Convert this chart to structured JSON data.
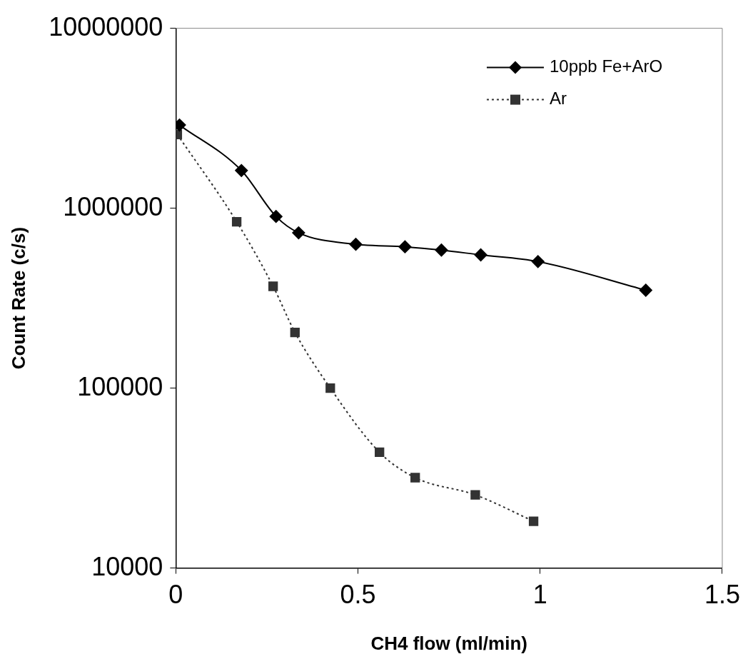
{
  "chart_data": {
    "type": "line",
    "xlabel": "CH4 flow (ml/min)",
    "ylabel": "Count Rate (c/s)",
    "log": "y",
    "xlim": [
      0,
      1.5
    ],
    "xticks": [
      0,
      0.5,
      1,
      1.5
    ],
    "ylim": [
      10000,
      10000000
    ],
    "yticks": [
      10000,
      100000,
      1000000,
      10000000
    ],
    "grid": false,
    "legend": "top right",
    "series": [
      {
        "name": "10ppb Fe+ArO",
        "color": "#000000",
        "marker": "diamond",
        "line_style": "solid",
        "x": [
          0.01,
          0.18,
          0.275,
          0.337,
          0.494,
          0.629,
          0.729,
          0.837,
          0.994,
          1.29
        ],
        "values": [
          2900000,
          1620000,
          900000,
          730000,
          630000,
          610000,
          585000,
          550000,
          505000,
          350000
        ]
      },
      {
        "name": "Ar",
        "color": "#333333",
        "marker": "square",
        "line_style": "dotted",
        "x": [
          0.004,
          0.167,
          0.267,
          0.327,
          0.424,
          0.559,
          0.657,
          0.822,
          0.982
        ],
        "values": [
          2570000,
          840000,
          368000,
          204000,
          100000,
          44000,
          31800,
          25500,
          18200
        ]
      }
    ]
  }
}
